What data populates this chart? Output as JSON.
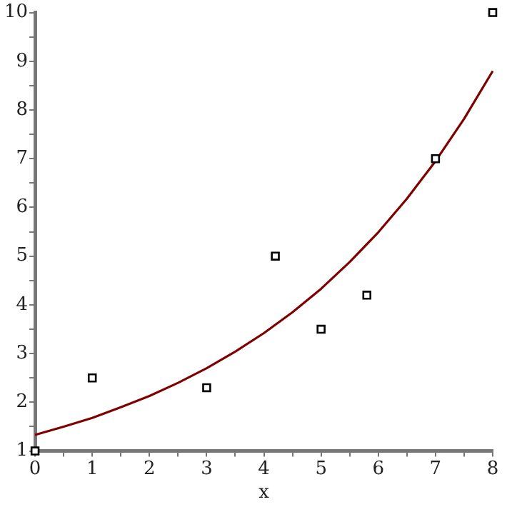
{
  "chart_data": {
    "type": "scatter",
    "xlabel": "x",
    "xlim": [
      0,
      8
    ],
    "ylim": [
      1,
      10
    ],
    "xticks": [
      0,
      {
        "value": 0.5,
        "label": null
      },
      1,
      {
        "value": 1.5,
        "label": null
      },
      2,
      {
        "value": 2.5,
        "label": null
      },
      3,
      {
        "value": 3.5,
        "label": null
      },
      4,
      {
        "value": 4.5,
        "label": null
      },
      5,
      {
        "value": 5.5,
        "label": null
      },
      6,
      {
        "value": 6.5,
        "label": null
      },
      7,
      {
        "value": 7.5,
        "label": null
      },
      8
    ],
    "yticks": [
      1,
      {
        "value": 1.5,
        "label": null
      },
      2,
      {
        "value": 2.5,
        "label": null
      },
      3,
      {
        "value": 3.5,
        "label": null
      },
      4,
      {
        "value": 4.5,
        "label": null
      },
      5,
      {
        "value": 5.5,
        "label": null
      },
      6,
      {
        "value": 6.5,
        "label": null
      },
      7,
      {
        "value": 7.5,
        "label": null
      },
      8,
      {
        "value": 8.5,
        "label": null
      },
      9,
      {
        "value": 9.5,
        "label": null
      },
      10
    ],
    "grid": false,
    "legend": false,
    "series": [
      {
        "type": "scatter",
        "marker": "square",
        "color": "#000000",
        "x": [
          0,
          1,
          3,
          4.2,
          5,
          5.8,
          7,
          8
        ],
        "values": [
          1,
          2.5,
          2.3,
          5,
          3.5,
          4.2,
          7,
          10
        ]
      },
      {
        "type": "line",
        "marker": "none",
        "line_style": "solid",
        "color": "#800000",
        "x": [
          0,
          0.5,
          1,
          1.5,
          2,
          2.5,
          3,
          3.5,
          4,
          4.5,
          5,
          5.5,
          6,
          6.5,
          7,
          7.5,
          8
        ],
        "values": [
          1.33,
          1.5,
          1.68,
          1.9,
          2.13,
          2.4,
          2.7,
          3.04,
          3.42,
          3.85,
          4.33,
          4.88,
          5.49,
          6.18,
          6.95,
          7.82,
          8.8
        ]
      }
    ]
  }
}
